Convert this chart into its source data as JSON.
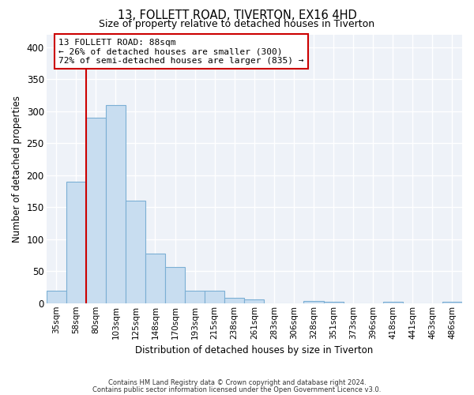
{
  "title1": "13, FOLLETT ROAD, TIVERTON, EX16 4HD",
  "title2": "Size of property relative to detached houses in Tiverton",
  "xlabel": "Distribution of detached houses by size in Tiverton",
  "ylabel": "Number of detached properties",
  "bar_labels": [
    "35sqm",
    "58sqm",
    "80sqm",
    "103sqm",
    "125sqm",
    "148sqm",
    "170sqm",
    "193sqm",
    "215sqm",
    "238sqm",
    "261sqm",
    "283sqm",
    "306sqm",
    "328sqm",
    "351sqm",
    "373sqm",
    "396sqm",
    "418sqm",
    "441sqm",
    "463sqm",
    "486sqm"
  ],
  "bar_heights": [
    20,
    190,
    290,
    310,
    160,
    78,
    56,
    20,
    20,
    8,
    6,
    0,
    0,
    4,
    2,
    0,
    0,
    2,
    0,
    0,
    2
  ],
  "bar_color": "#c8ddf0",
  "bar_edge_color": "#7bafd4",
  "ylim": [
    0,
    420
  ],
  "yticks": [
    0,
    50,
    100,
    150,
    200,
    250,
    300,
    350,
    400
  ],
  "marker_line_color": "#cc0000",
  "annotation_title": "13 FOLLETT ROAD: 88sqm",
  "annotation_line1": "← 26% of detached houses are smaller (300)",
  "annotation_line2": "72% of semi-detached houses are larger (835) →",
  "annotation_box_facecolor": "#ffffff",
  "annotation_box_edge": "#cc0000",
  "footnote1": "Contains HM Land Registry data © Crown copyright and database right 2024.",
  "footnote2": "Contains public sector information licensed under the Open Government Licence v3.0.",
  "background_color": "#ffffff",
  "plot_bg_color": "#eef2f8",
  "grid_color": "#ffffff"
}
